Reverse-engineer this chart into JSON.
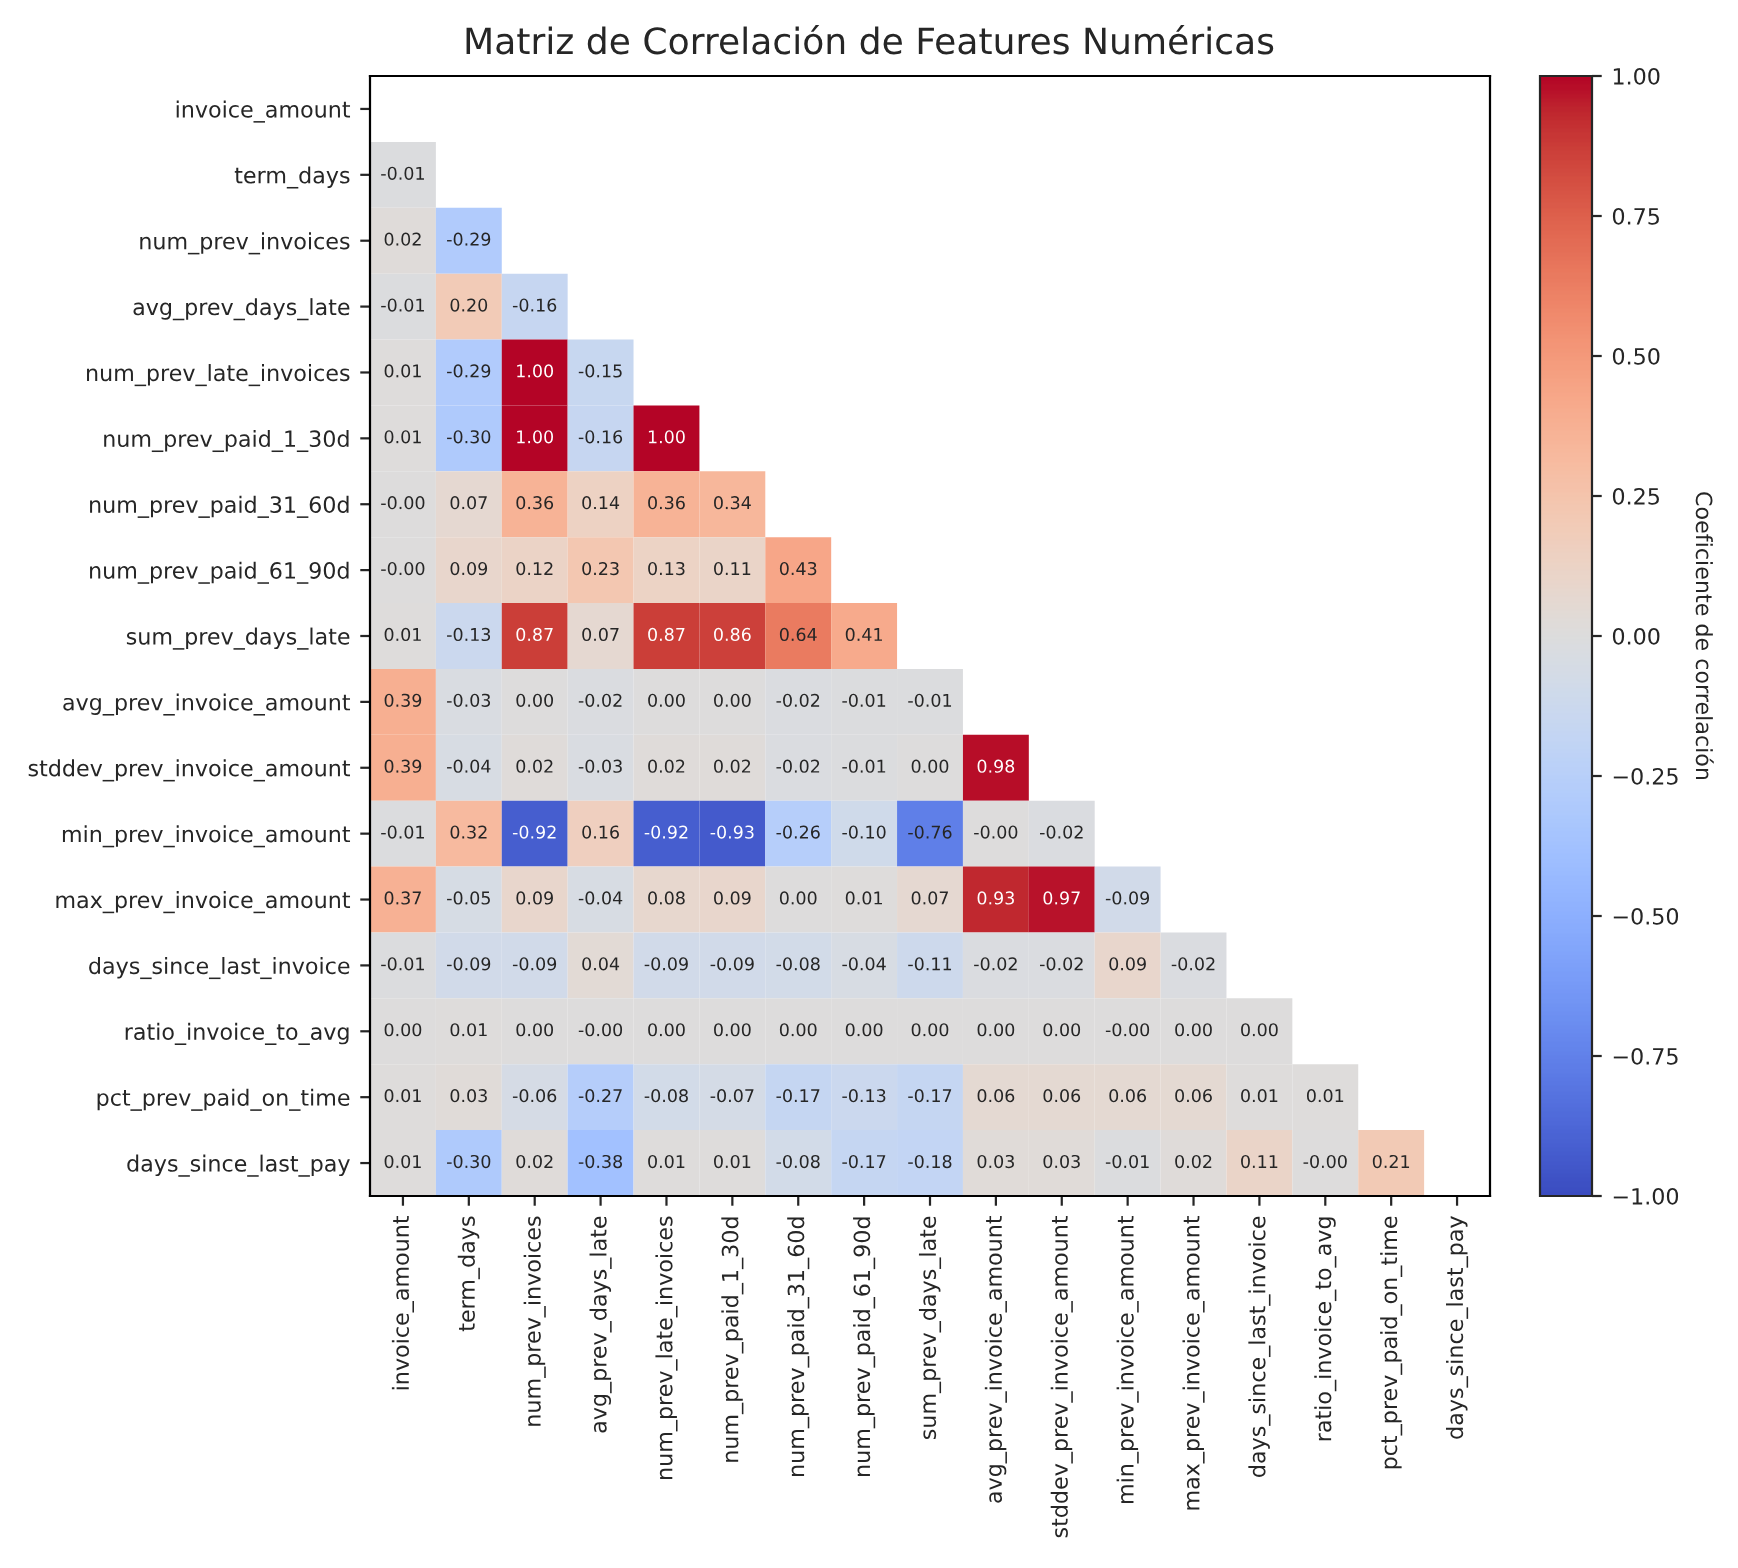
{
  "chart_data": {
    "type": "heatmap",
    "title": "Matriz de Correlación de Features Numéricas",
    "categories": [
      "invoice_amount",
      "term_days",
      "num_prev_invoices",
      "avg_prev_days_late",
      "num_prev_late_invoices",
      "num_prev_paid_1_30d",
      "num_prev_paid_31_60d",
      "num_prev_paid_61_90d",
      "sum_prev_days_late",
      "avg_prev_invoice_amount",
      "stddev_prev_invoice_amount",
      "min_prev_invoice_amount",
      "max_prev_invoice_amount",
      "days_since_last_invoice",
      "ratio_invoice_to_avg",
      "pct_prev_paid_on_time",
      "days_since_last_pay"
    ],
    "y_categories": [
      "invoice_amount",
      "term_days",
      "num_prev_invoices",
      "avg_prev_days_late",
      "num_prev_late_invoices",
      "num_prev_paid_1_30d",
      "num_prev_paid_31_60d",
      "num_prev_paid_61_90d",
      "sum_prev_days_late",
      "avg_prev_invoice_amount",
      "stddev_prev_invoice_amount",
      "min_prev_invoice_amount",
      "max_prev_invoice_amount",
      "days_since_last_invoice",
      "ratio_invoice_to_avg",
      "pct_prev_paid_on_time",
      "days_since_last_pay"
    ],
    "cells": [
      [
        null,
        null,
        null,
        null,
        null,
        null,
        null,
        null,
        null,
        null,
        null,
        null,
        null,
        null,
        null,
        null,
        null
      ],
      [
        -0.01,
        null,
        null,
        null,
        null,
        null,
        null,
        null,
        null,
        null,
        null,
        null,
        null,
        null,
        null,
        null,
        null
      ],
      [
        0.02,
        -0.29,
        null,
        null,
        null,
        null,
        null,
        null,
        null,
        null,
        null,
        null,
        null,
        null,
        null,
        null,
        null
      ],
      [
        -0.01,
        0.2,
        -0.16,
        null,
        null,
        null,
        null,
        null,
        null,
        null,
        null,
        null,
        null,
        null,
        null,
        null,
        null
      ],
      [
        0.01,
        -0.29,
        1.0,
        -0.15,
        null,
        null,
        null,
        null,
        null,
        null,
        null,
        null,
        null,
        null,
        null,
        null,
        null
      ],
      [
        0.01,
        -0.3,
        1.0,
        -0.16,
        1.0,
        null,
        null,
        null,
        null,
        null,
        null,
        null,
        null,
        null,
        null,
        null,
        null
      ],
      [
        -0.0,
        0.07,
        0.36,
        0.14,
        0.36,
        0.34,
        null,
        null,
        null,
        null,
        null,
        null,
        null,
        null,
        null,
        null,
        null
      ],
      [
        -0.0,
        0.09,
        0.12,
        0.23,
        0.13,
        0.11,
        0.43,
        null,
        null,
        null,
        null,
        null,
        null,
        null,
        null,
        null,
        null
      ],
      [
        0.01,
        -0.13,
        0.87,
        0.07,
        0.87,
        0.86,
        0.64,
        0.41,
        null,
        null,
        null,
        null,
        null,
        null,
        null,
        null,
        null
      ],
      [
        0.39,
        -0.03,
        0.0,
        -0.02,
        0.0,
        0.0,
        -0.02,
        -0.01,
        -0.01,
        null,
        null,
        null,
        null,
        null,
        null,
        null,
        null
      ],
      [
        0.39,
        -0.04,
        0.02,
        -0.03,
        0.02,
        0.02,
        -0.02,
        -0.01,
        0.0,
        0.98,
        null,
        null,
        null,
        null,
        null,
        null,
        null
      ],
      [
        -0.01,
        0.32,
        -0.92,
        0.16,
        -0.92,
        -0.93,
        -0.26,
        -0.1,
        -0.76,
        -0.0,
        -0.02,
        null,
        null,
        null,
        null,
        null,
        null
      ],
      [
        0.37,
        -0.05,
        0.09,
        -0.04,
        0.08,
        0.09,
        0.0,
        0.01,
        0.07,
        0.93,
        0.97,
        -0.09,
        null,
        null,
        null,
        null,
        null
      ],
      [
        -0.01,
        -0.09,
        -0.09,
        0.04,
        -0.09,
        -0.09,
        -0.08,
        -0.04,
        -0.11,
        -0.02,
        -0.02,
        0.09,
        -0.02,
        null,
        null,
        null,
        null
      ],
      [
        0.0,
        0.01,
        0.0,
        -0.0,
        0.0,
        0.0,
        0.0,
        0.0,
        0.0,
        0.0,
        0.0,
        -0.0,
        0.0,
        0.0,
        null,
        null,
        null
      ],
      [
        0.01,
        0.03,
        -0.06,
        -0.27,
        -0.08,
        -0.07,
        -0.17,
        -0.13,
        -0.17,
        0.06,
        0.06,
        0.06,
        0.06,
        0.01,
        0.01,
        null,
        null
      ],
      [
        0.01,
        -0.3,
        0.02,
        -0.38,
        0.01,
        0.01,
        -0.08,
        -0.17,
        -0.18,
        0.03,
        0.03,
        -0.01,
        0.02,
        0.11,
        -0.0,
        0.21,
        null
      ]
    ],
    "cell_labels": [
      [
        null,
        null,
        null,
        null,
        null,
        null,
        null,
        null,
        null,
        null,
        null,
        null,
        null,
        null,
        null,
        null,
        null
      ],
      [
        "-0.01",
        null,
        null,
        null,
        null,
        null,
        null,
        null,
        null,
        null,
        null,
        null,
        null,
        null,
        null,
        null,
        null
      ],
      [
        "0.02",
        "-0.29",
        null,
        null,
        null,
        null,
        null,
        null,
        null,
        null,
        null,
        null,
        null,
        null,
        null,
        null,
        null
      ],
      [
        "-0.01",
        "0.20",
        "-0.16",
        null,
        null,
        null,
        null,
        null,
        null,
        null,
        null,
        null,
        null,
        null,
        null,
        null,
        null
      ],
      [
        "0.01",
        "-0.29",
        "1.00",
        "-0.15",
        null,
        null,
        null,
        null,
        null,
        null,
        null,
        null,
        null,
        null,
        null,
        null,
        null
      ],
      [
        "0.01",
        "-0.30",
        "1.00",
        "-0.16",
        "1.00",
        null,
        null,
        null,
        null,
        null,
        null,
        null,
        null,
        null,
        null,
        null,
        null
      ],
      [
        "-0.00",
        "0.07",
        "0.36",
        "0.14",
        "0.36",
        "0.34",
        null,
        null,
        null,
        null,
        null,
        null,
        null,
        null,
        null,
        null,
        null
      ],
      [
        "-0.00",
        "0.09",
        "0.12",
        "0.23",
        "0.13",
        "0.11",
        "0.43",
        null,
        null,
        null,
        null,
        null,
        null,
        null,
        null,
        null,
        null
      ],
      [
        "0.01",
        "-0.13",
        "0.87",
        "0.07",
        "0.87",
        "0.86",
        "0.64",
        "0.41",
        null,
        null,
        null,
        null,
        null,
        null,
        null,
        null,
        null
      ],
      [
        "0.39",
        "-0.03",
        "0.00",
        "-0.02",
        "0.00",
        "0.00",
        "-0.02",
        "-0.01",
        "-0.01",
        null,
        null,
        null,
        null,
        null,
        null,
        null,
        null
      ],
      [
        "0.39",
        "-0.04",
        "0.02",
        "-0.03",
        "0.02",
        "0.02",
        "-0.02",
        "-0.01",
        "0.00",
        "0.98",
        null,
        null,
        null,
        null,
        null,
        null,
        null
      ],
      [
        "-0.01",
        "0.32",
        "-0.92",
        "0.16",
        "-0.92",
        "-0.93",
        "-0.26",
        "-0.10",
        "-0.76",
        "-0.00",
        "-0.02",
        null,
        null,
        null,
        null,
        null,
        null
      ],
      [
        "0.37",
        "-0.05",
        "0.09",
        "-0.04",
        "0.08",
        "0.09",
        "0.00",
        "0.01",
        "0.07",
        "0.93",
        "0.97",
        "-0.09",
        null,
        null,
        null,
        null,
        null
      ],
      [
        "-0.01",
        "-0.09",
        "-0.09",
        "0.04",
        "-0.09",
        "-0.09",
        "-0.08",
        "-0.04",
        "-0.11",
        "-0.02",
        "-0.02",
        "0.09",
        "-0.02",
        null,
        null,
        null,
        null
      ],
      [
        "0.00",
        "0.01",
        "0.00",
        "-0.00",
        "0.00",
        "0.00",
        "0.00",
        "0.00",
        "0.00",
        "0.00",
        "0.00",
        "-0.00",
        "0.00",
        "0.00",
        null,
        null,
        null
      ],
      [
        "0.01",
        "0.03",
        "-0.06",
        "-0.27",
        "-0.08",
        "-0.07",
        "-0.17",
        "-0.13",
        "-0.17",
        "0.06",
        "0.06",
        "0.06",
        "0.06",
        "0.01",
        "0.01",
        null,
        null
      ],
      [
        "0.01",
        "-0.30",
        "0.02",
        "-0.38",
        "0.01",
        "0.01",
        "-0.08",
        "-0.17",
        "-0.18",
        "0.03",
        "0.03",
        "-0.01",
        "0.02",
        "0.11",
        "-0.00",
        "0.21",
        null
      ]
    ],
    "clim": [
      -1,
      1
    ],
    "cticks": [
      {
        "value": -1,
        "label": "−1.00"
      },
      {
        "value": -0.75,
        "label": "−0.75"
      },
      {
        "value": -0.5,
        "label": "−0.50"
      },
      {
        "value": -0.25,
        "label": "−0.25"
      },
      {
        "value": 0,
        "label": "0.00"
      },
      {
        "value": 0.25,
        "label": "0.25"
      },
      {
        "value": 0.5,
        "label": "0.50"
      },
      {
        "value": 0.75,
        "label": "0.75"
      },
      {
        "value": 1,
        "label": "1.00"
      }
    ],
    "clabel": "Coeficiente de correlación"
  }
}
